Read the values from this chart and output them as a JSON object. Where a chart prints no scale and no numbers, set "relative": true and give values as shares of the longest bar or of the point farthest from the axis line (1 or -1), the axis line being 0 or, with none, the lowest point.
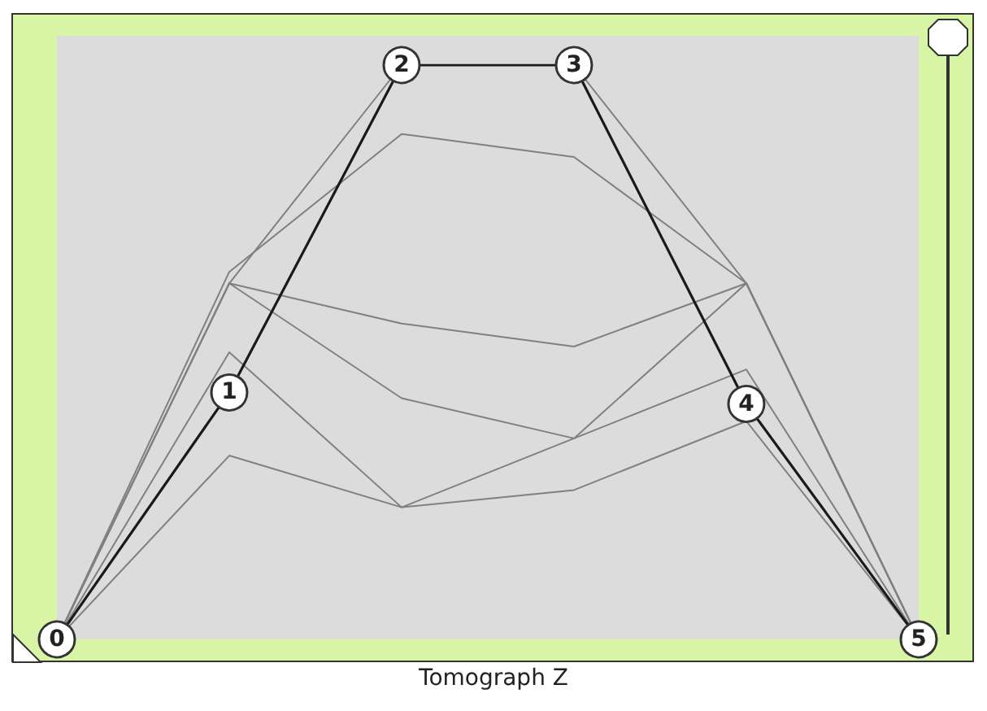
{
  "chart_data": {
    "type": "line",
    "title": "Tomograph Z",
    "relative": true,
    "grid": false,
    "categories": [
      "0",
      "1",
      "2",
      "3",
      "4",
      "5"
    ],
    "series": [
      {
        "color": "#1a1a1a",
        "marker": "circle",
        "values": [
          0,
          0.43,
          1,
          1,
          0.41,
          0
        ]
      },
      {
        "color": "#808080",
        "marker": "none",
        "values": [
          0,
          0.62,
          1,
          1,
          0.62,
          0
        ]
      },
      {
        "color": "#808080",
        "marker": "none",
        "values": [
          0,
          0.64,
          0.88,
          0.84,
          0.62,
          0
        ]
      },
      {
        "color": "#808080",
        "marker": "none",
        "values": [
          0,
          0.62,
          0.55,
          0.51,
          0.62,
          0
        ]
      },
      {
        "color": "#808080",
        "marker": "none",
        "values": [
          0,
          0.62,
          0.42,
          0.35,
          0.62,
          0
        ]
      },
      {
        "color": "#808080",
        "marker": "none",
        "values": [
          0,
          0.5,
          0.23,
          0.35,
          0.47,
          0
        ]
      },
      {
        "color": "#808080",
        "marker": "none",
        "values": [
          0,
          0.32,
          0.23,
          0.26,
          0.38,
          0
        ]
      }
    ]
  }
}
